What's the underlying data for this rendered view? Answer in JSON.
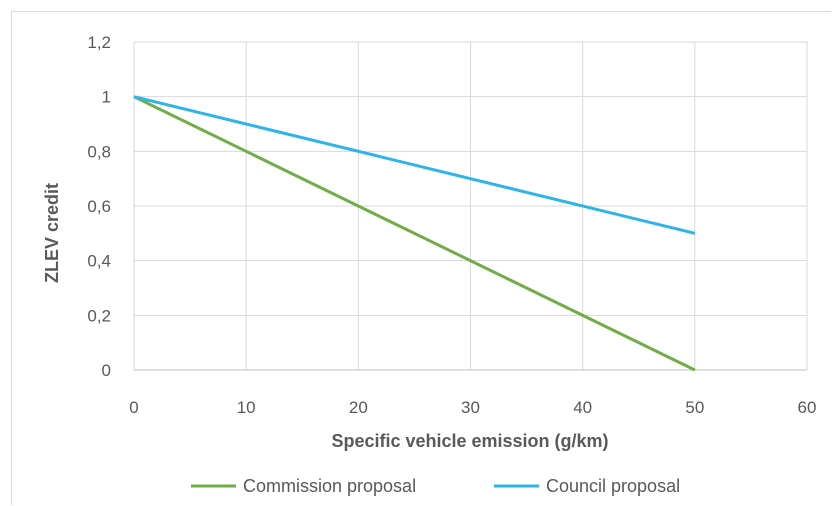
{
  "chart_data": {
    "type": "line",
    "title": "",
    "xlabel": "Specific vehicle emission (g/km)",
    "ylabel": "ZLEV credit",
    "xlim": [
      0,
      60
    ],
    "ylim": [
      0,
      1.2
    ],
    "x_ticks": [
      "0",
      "10",
      "20",
      "30",
      "40",
      "50",
      "60"
    ],
    "y_ticks": [
      "0",
      "0,2",
      "0,4",
      "0,6",
      "0,8",
      "1",
      "1,2"
    ],
    "grid": true,
    "legend": "bottom",
    "series": [
      {
        "name": "Commission proposal",
        "color": "#70ad47",
        "x": [
          0,
          50
        ],
        "y": [
          1,
          0
        ]
      },
      {
        "name": "Council proposal",
        "color": "#2eb4e8",
        "x": [
          0,
          50
        ],
        "y": [
          1,
          0.5
        ]
      }
    ]
  }
}
